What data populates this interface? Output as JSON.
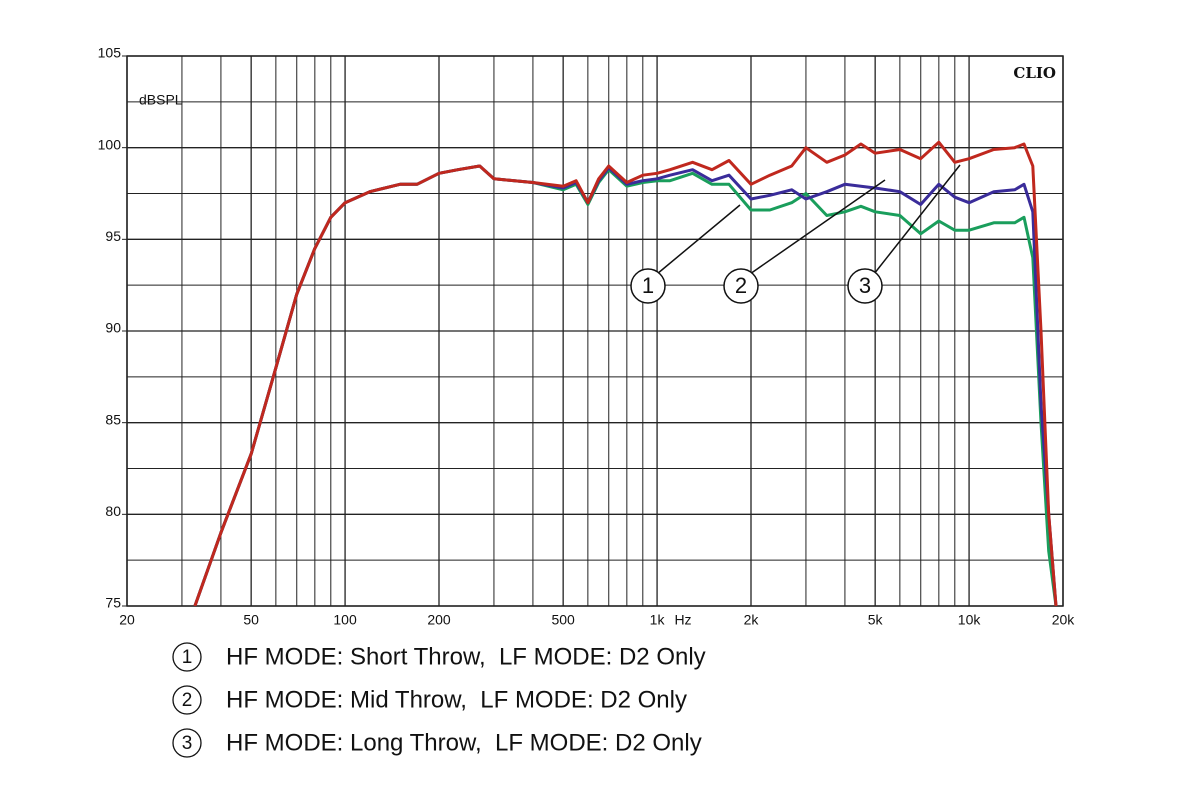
{
  "chart_data": {
    "type": "line",
    "xlabel": "Hz",
    "ylabel": "dBSPL",
    "brand": "CLIO",
    "log_x": true,
    "grid": true,
    "xlim": [
      20,
      20000
    ],
    "ylim": [
      75,
      105
    ],
    "xticks": [
      20,
      50,
      100,
      200,
      500,
      {
        "value": 1000,
        "label": "1k"
      },
      {
        "value": 2000,
        "label": "2k"
      },
      {
        "value": 5000,
        "label": "5k"
      },
      {
        "value": 10000,
        "label": "10k"
      },
      {
        "value": 20000,
        "label": "20k"
      }
    ],
    "yticks": [
      75,
      80,
      85,
      90,
      95,
      100,
      105
    ],
    "xgrid": [
      30,
      40,
      60,
      70,
      80,
      90,
      300,
      400,
      600,
      700,
      800,
      900,
      3000,
      4000,
      6000,
      7000,
      8000,
      9000
    ],
    "ygrid": [
      77.5,
      82.5,
      87.5,
      92.5,
      97.5,
      102.5
    ],
    "x": [
      33,
      40,
      50,
      60,
      70,
      80,
      90,
      100,
      120,
      150,
      170,
      200,
      230,
      270,
      300,
      400,
      500,
      550,
      600,
      650,
      700,
      800,
      900,
      1000,
      1100,
      1300,
      1500,
      1700,
      2000,
      2300,
      2700,
      3000,
      3500,
      4000,
      4500,
      5000,
      6000,
      7000,
      8000,
      9000,
      10000,
      12000,
      14000,
      15000,
      16000,
      17000,
      18000,
      19000
    ],
    "series": [
      {
        "name": "HF MODE: Short Throw,  LF MODE: D2 Only",
        "label": "1",
        "color": "#1a9e5c",
        "values": [
          75,
          79,
          83.3,
          88,
          92,
          94.5,
          96.2,
          97,
          97.6,
          98,
          98,
          98.6,
          98.8,
          99,
          98.3,
          98.1,
          97.7,
          98,
          96.9,
          98.1,
          98.8,
          97.9,
          98.1,
          98.2,
          98.2,
          98.6,
          98,
          98,
          96.6,
          96.6,
          97,
          97.5,
          96.3,
          96.5,
          96.8,
          96.5,
          96.3,
          95.3,
          96,
          95.5,
          95.5,
          95.9,
          95.9,
          96.2,
          94,
          85,
          78,
          75
        ]
      },
      {
        "name": "HF MODE: Mid Throw,  LF MODE: D2 Only",
        "label": "2",
        "color": "#3a2c9a",
        "values": [
          75,
          79,
          83.3,
          88,
          92,
          94.5,
          96.2,
          97,
          97.6,
          98,
          98,
          98.6,
          98.8,
          99,
          98.3,
          98.1,
          97.8,
          98.1,
          97,
          98.2,
          98.9,
          98,
          98.2,
          98.3,
          98.5,
          98.8,
          98.2,
          98.5,
          97.2,
          97.4,
          97.7,
          97.2,
          97.6,
          98,
          97.9,
          97.8,
          97.6,
          96.9,
          98,
          97.3,
          97,
          97.6,
          97.7,
          98,
          96.5,
          86,
          80,
          75
        ]
      },
      {
        "name": "HF MODE: Long Throw,  LF MODE: D2 Only",
        "label": "3",
        "color": "#c0281e",
        "values": [
          75,
          79,
          83.3,
          88,
          92,
          94.5,
          96.2,
          97,
          97.6,
          98,
          98,
          98.6,
          98.8,
          99,
          98.3,
          98.1,
          97.9,
          98.2,
          97,
          98.3,
          99,
          98.1,
          98.5,
          98.6,
          98.8,
          99.2,
          98.8,
          99.3,
          98,
          98.5,
          99,
          100,
          99.2,
          99.6,
          100.2,
          99.7,
          99.9,
          99.4,
          100.3,
          99.2,
          99.4,
          99.9,
          100,
          100.2,
          99,
          90,
          80,
          75
        ]
      }
    ]
  }
}
